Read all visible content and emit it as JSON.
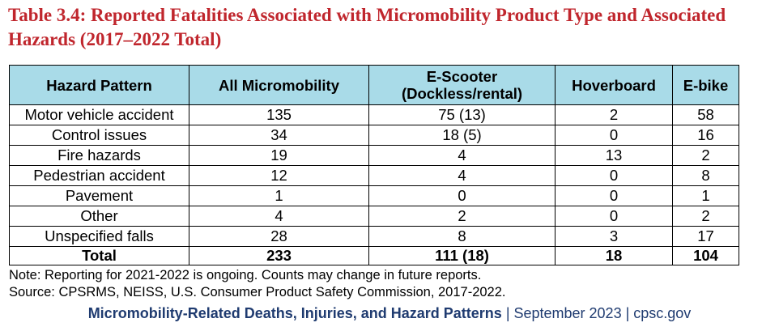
{
  "title": "Table 3.4: Reported Fatalities Associated with Micromobility Product Type and Associated Hazards (2017–2022 Total)",
  "table": {
    "header": [
      "Hazard Pattern",
      "All Micromobility",
      "E-Scooter\n(Dockless/rental)",
      "Hoverboard",
      "E-bike"
    ],
    "rows": [
      [
        "Motor vehicle accident",
        135,
        "75 (13)",
        2,
        58
      ],
      [
        "Control issues",
        34,
        "18 (5)",
        0,
        16
      ],
      [
        "Fire hazards",
        19,
        4,
        13,
        2
      ],
      [
        "Pedestrian accident",
        12,
        4,
        0,
        8
      ],
      [
        "Pavement",
        1,
        0,
        0,
        1
      ],
      [
        "Other",
        4,
        2,
        0,
        2
      ],
      [
        "Unspecified falls",
        28,
        8,
        3,
        17
      ]
    ],
    "total": [
      "Total",
      233,
      "111 (18)",
      18,
      104
    ]
  },
  "notes": [
    "Note: Reporting for 2021-2022 is ongoing. Counts may change in future reports.",
    "Source: CPSRMS, NEISS, U.S. Consumer Product Safety Commission, 2017-2022."
  ],
  "footer": {
    "bold": "Micromobility-Related Deaths, Injuries, and Hazard Patterns",
    "rest": " | September 2023 | cpsc.gov"
  }
}
